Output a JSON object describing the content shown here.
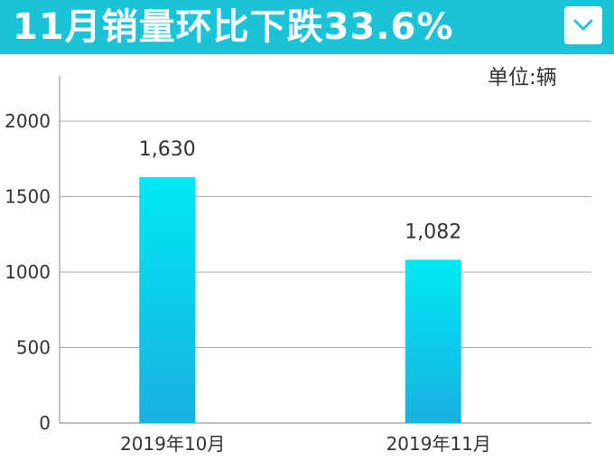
{
  "header": {
    "title": "11月销量环比下跌33.6%",
    "dropdown_icon": "chevron-down-icon"
  },
  "chart_data": {
    "type": "bar",
    "title": "11月销量环比下跌33.6%",
    "unit_label": "单位:辆",
    "categories": [
      "2019年10月",
      "2019年11月"
    ],
    "values": [
      1630,
      1082
    ],
    "data_labels": [
      "1,630",
      "1,082"
    ],
    "yticks": [
      "0",
      "500",
      "1000",
      "1500",
      "2000"
    ],
    "ylim": [
      0,
      2300
    ],
    "grid": true,
    "colors": {
      "bar_top": "#00e8f4",
      "bar_bottom": "#1ab0e0",
      "header": "#1bc3d8",
      "grid": "#999999"
    }
  }
}
